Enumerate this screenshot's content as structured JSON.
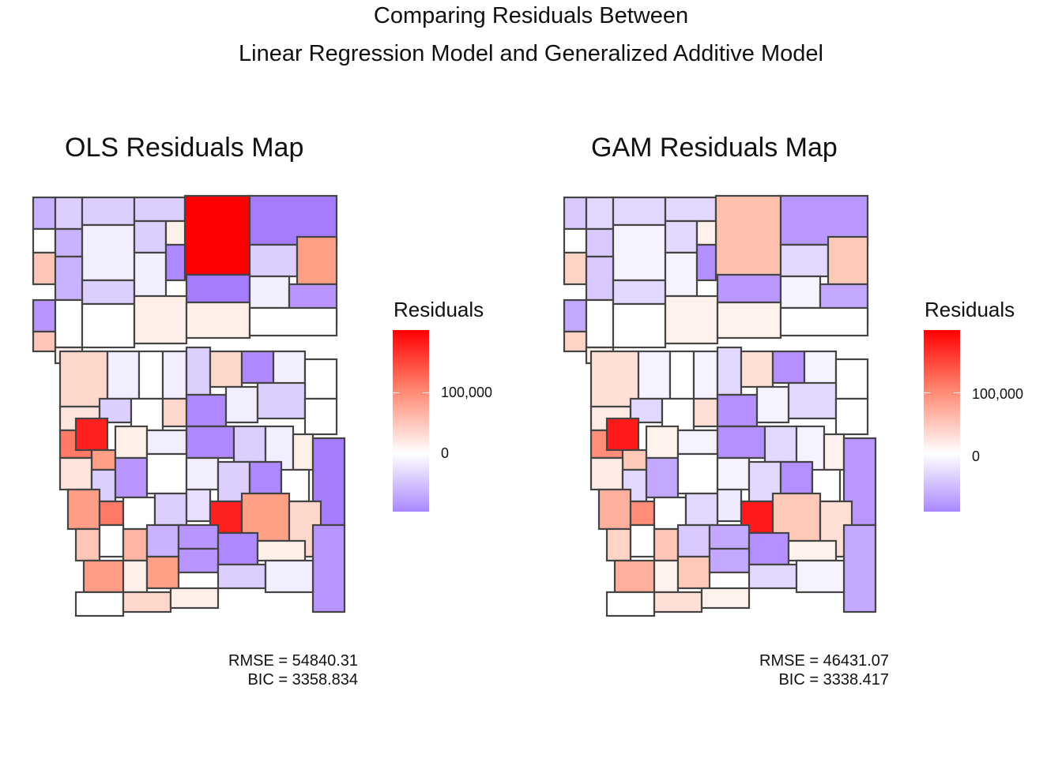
{
  "title": {
    "line1": "Comparing Residuals Between",
    "line2": "Linear Regression Model and Generalized Additive Model"
  },
  "panels": [
    {
      "title": "OLS Residuals Map",
      "legend_title": "Residuals",
      "legend_ticks": [
        "100,000",
        "0"
      ],
      "rmse": "RMSE = 54840.31",
      "bic": "BIC = 3358.834",
      "tract_colors": [
        "#ff0000",
        "#c9b3ff",
        "#ff9f86",
        "#a67cff",
        "#fff4f2",
        "#ffd8cd",
        "#e9dfff",
        "#ff7a66",
        "#ff9e87",
        "#ffffff",
        "#ffe5de",
        "#b895ff",
        "#ff2020",
        "#d4c3ff",
        "#f3eeff",
        "#ffc5b7",
        "#ad88ff",
        "#ffb4a4",
        "#dcceff",
        "#ffefe9"
      ]
    },
    {
      "title": "GAM Residuals Map",
      "legend_title": "Residuals",
      "legend_ticks": [
        "100,000",
        "0"
      ],
      "rmse": "RMSE = 46431.07",
      "bic": "BIC = 3338.417",
      "tract_colors": [
        "#ffc1ad",
        "#d9c9ff",
        "#ffc9b8",
        "#b897ff",
        "#fffaf8",
        "#ffe0d6",
        "#f0eaff",
        "#ff8d78",
        "#ffb09c",
        "#ffffff",
        "#ffebe4",
        "#c4a8ff",
        "#ff1a1a",
        "#ddd0ff",
        "#f6f2ff",
        "#ffd4c7",
        "#b48fff",
        "#ffc5b5",
        "#e3d8ff",
        "#fff1ec"
      ]
    }
  ],
  "scale": {
    "high": "#ff0000",
    "mid": "#ffffff",
    "low": "#aa88ff"
  }
}
